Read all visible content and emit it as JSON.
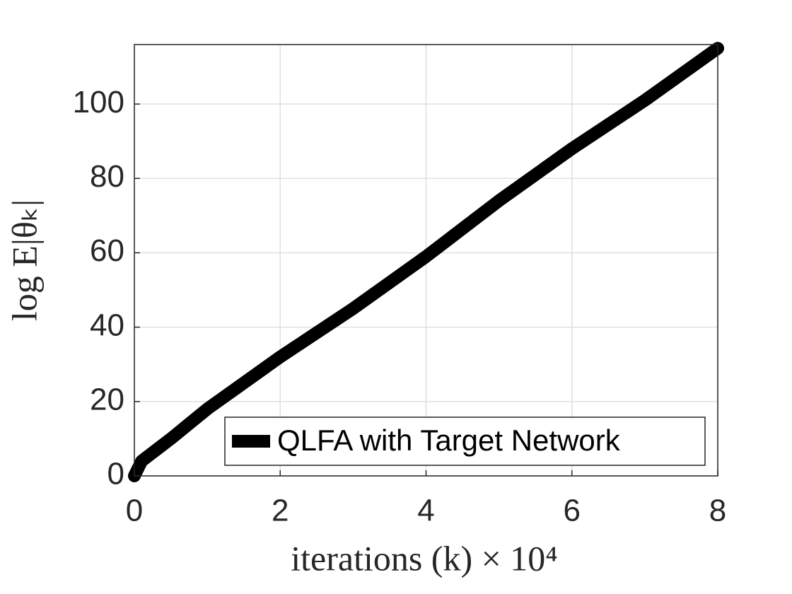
{
  "chart_data": {
    "type": "line",
    "x_label": "iterations (k) × 10⁴",
    "y_label": "log E|θₖ|",
    "x": [
      0,
      0.1,
      0.5,
      1,
      2,
      3,
      4,
      5,
      6,
      7,
      8
    ],
    "series": [
      {
        "name": "QLFA with Target Network",
        "color": "#000000",
        "values": [
          0,
          4,
          10,
          18,
          32,
          45,
          59,
          74,
          88,
          101,
          115
        ]
      }
    ],
    "xlim": [
      0,
      8
    ],
    "xticks": [
      0,
      2,
      4,
      6,
      8
    ],
    "ylim": [
      0,
      116
    ],
    "yticks": [
      0,
      20,
      40,
      60,
      80,
      100
    ],
    "grid": true,
    "legend": "lower right"
  }
}
